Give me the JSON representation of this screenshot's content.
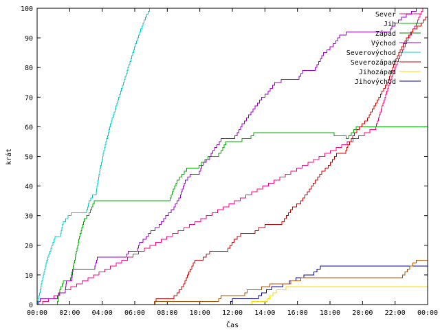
{
  "chart_data": {
    "type": "line",
    "title": "",
    "xlabel": "Čas",
    "ylabel": "krát",
    "xlim": [
      0,
      24
    ],
    "ylim": [
      0,
      100
    ],
    "x_ticks": [
      "00:00",
      "02:00",
      "04:00",
      "06:00",
      "08:00",
      "10:00",
      "12:00",
      "14:00",
      "16:00",
      "18:00",
      "20:00",
      "22:00",
      "00:00"
    ],
    "y_ticks": [
      "0",
      "10",
      "20",
      "30",
      "40",
      "50",
      "60",
      "70",
      "80",
      "90",
      "100"
    ],
    "legend_position": "top-right",
    "series": [
      {
        "name": "Sever",
        "color": "#ff0080",
        "points": [
          [
            0,
            0
          ],
          [
            20.8,
            60
          ],
          [
            21.6,
            74
          ],
          [
            22.2,
            83
          ],
          [
            22.8,
            90
          ],
          [
            23.3,
            95
          ],
          [
            23.7,
            100
          ],
          [
            24,
            100
          ]
        ]
      },
      {
        "name": "Jih",
        "color": "#00aa00",
        "points": [
          [
            0,
            0
          ],
          [
            1.2,
            0
          ],
          [
            1.4,
            5
          ],
          [
            1.6,
            8
          ],
          [
            2.0,
            8
          ],
          [
            2.3,
            15
          ],
          [
            2.6,
            23
          ],
          [
            2.9,
            29
          ],
          [
            3.2,
            31
          ],
          [
            3.5,
            35
          ],
          [
            8.1,
            35
          ],
          [
            8.3,
            38
          ],
          [
            8.6,
            42
          ],
          [
            8.9,
            44
          ],
          [
            9.2,
            46
          ],
          [
            9.8,
            46
          ],
          [
            10.1,
            48
          ],
          [
            10.5,
            50
          ],
          [
            11.0,
            50
          ],
          [
            11.3,
            52
          ],
          [
            11.6,
            55
          ],
          [
            12.3,
            55
          ],
          [
            12.6,
            56
          ],
          [
            13.0,
            56
          ],
          [
            13.3,
            58
          ],
          [
            17.5,
            58
          ],
          [
            19.0,
            56
          ],
          [
            19.3,
            58
          ],
          [
            19.6,
            60
          ],
          [
            24,
            60
          ]
        ]
      },
      {
        "name": "Západ",
        "color": "#008000",
        "points": []
      },
      {
        "name": "Východ",
        "color": "#9900cc",
        "points": [
          [
            0,
            0
          ],
          [
            0.2,
            2
          ],
          [
            1.2,
            2
          ],
          [
            1.3,
            4
          ],
          [
            1.7,
            4
          ],
          [
            1.8,
            8
          ],
          [
            2.1,
            8
          ],
          [
            2.2,
            12
          ],
          [
            3.5,
            12
          ],
          [
            3.7,
            16
          ],
          [
            5.4,
            16
          ],
          [
            5.6,
            18
          ],
          [
            6.1,
            18
          ],
          [
            6.3,
            21
          ],
          [
            6.7,
            23
          ],
          [
            7.0,
            25
          ],
          [
            7.5,
            27
          ],
          [
            7.9,
            30
          ],
          [
            8.4,
            33
          ],
          [
            8.8,
            37
          ],
          [
            9.1,
            42
          ],
          [
            9.4,
            44
          ],
          [
            9.9,
            44
          ],
          [
            10.2,
            48
          ],
          [
            10.6,
            50
          ],
          [
            10.9,
            53
          ],
          [
            11.2,
            55
          ],
          [
            11.3,
            56
          ],
          [
            12.0,
            56
          ],
          [
            12.3,
            58
          ],
          [
            12.6,
            61
          ],
          [
            13.0,
            64
          ],
          [
            13.4,
            67
          ],
          [
            13.8,
            70
          ],
          [
            14.2,
            72
          ],
          [
            14.6,
            75
          ],
          [
            15.0,
            76
          ],
          [
            16.0,
            76
          ],
          [
            16.3,
            79
          ],
          [
            17.0,
            79
          ],
          [
            17.3,
            82
          ],
          [
            17.6,
            85
          ],
          [
            18.2,
            88
          ],
          [
            18.6,
            91
          ],
          [
            19.0,
            92
          ],
          [
            21.6,
            92
          ],
          [
            21.8,
            94
          ],
          [
            22.0,
            95
          ],
          [
            22.4,
            97
          ],
          [
            23.0,
            99
          ],
          [
            23.3,
            100
          ],
          [
            24,
            100
          ]
        ]
      },
      {
        "name": "Severovýchod",
        "color": "#00cccc",
        "points": [
          [
            0,
            0
          ],
          [
            0.3,
            8
          ],
          [
            0.6,
            15
          ],
          [
            0.9,
            20
          ],
          [
            1.1,
            23
          ],
          [
            1.4,
            23
          ],
          [
            1.6,
            28
          ],
          [
            1.9,
            30
          ],
          [
            2.1,
            31
          ],
          [
            3.0,
            31
          ],
          [
            3.2,
            35
          ],
          [
            3.4,
            37
          ],
          [
            3.6,
            37
          ],
          [
            3.8,
            44
          ],
          [
            4.1,
            52
          ],
          [
            4.5,
            61
          ],
          [
            4.9,
            68
          ],
          [
            5.3,
            75
          ],
          [
            5.7,
            82
          ],
          [
            6.1,
            89
          ],
          [
            6.5,
            95
          ],
          [
            6.9,
            100
          ],
          [
            7.0,
            100
          ]
        ]
      },
      {
        "name": "Severozápad",
        "color": "#cc0000",
        "points": [
          [
            0,
            0
          ],
          [
            7.2,
            0
          ],
          [
            7.3,
            2
          ],
          [
            8.2,
            2
          ],
          [
            8.6,
            4
          ],
          [
            9.0,
            7
          ],
          [
            9.4,
            12
          ],
          [
            9.7,
            15
          ],
          [
            10.2,
            16
          ],
          [
            10.6,
            18
          ],
          [
            11.6,
            18
          ],
          [
            12.1,
            22
          ],
          [
            12.5,
            24
          ],
          [
            13.2,
            24
          ],
          [
            13.6,
            26
          ],
          [
            14.0,
            27
          ],
          [
            14.9,
            27
          ],
          [
            15.2,
            29
          ],
          [
            15.7,
            33
          ],
          [
            16.2,
            35
          ],
          [
            16.6,
            38
          ],
          [
            17.1,
            42
          ],
          [
            17.5,
            45
          ],
          [
            17.9,
            47
          ],
          [
            18.4,
            51
          ],
          [
            18.9,
            51
          ],
          [
            19.1,
            54
          ],
          [
            19.5,
            58
          ],
          [
            19.8,
            60
          ],
          [
            20.3,
            63
          ],
          [
            20.7,
            67
          ],
          [
            21.2,
            72
          ],
          [
            21.6,
            76
          ],
          [
            21.9,
            81
          ],
          [
            22.3,
            86
          ],
          [
            22.7,
            90
          ],
          [
            23.1,
            93
          ],
          [
            23.6,
            95
          ],
          [
            24,
            98
          ]
        ]
      },
      {
        "name": "Jihozápad",
        "color": "#ffd700",
        "points": [
          [
            0,
            0
          ],
          [
            13.0,
            0
          ],
          [
            13.2,
            1
          ],
          [
            14.0,
            1
          ],
          [
            14.3,
            3
          ],
          [
            14.7,
            5
          ],
          [
            15.3,
            6
          ],
          [
            24,
            6
          ]
        ]
      },
      {
        "name": "Jihovýchod",
        "color": "#0000aa",
        "points": [
          [
            0,
            0
          ],
          [
            11.8,
            0
          ],
          [
            12.0,
            2
          ],
          [
            13.4,
            2
          ],
          [
            13.8,
            4
          ],
          [
            14.4,
            6
          ],
          [
            15.1,
            7
          ],
          [
            15.9,
            9
          ],
          [
            16.4,
            10
          ],
          [
            17.0,
            11
          ],
          [
            17.4,
            13
          ],
          [
            24,
            13
          ]
        ]
      },
      {
        "name": "",
        "color": "#b05000",
        "points": [
          [
            0,
            0
          ],
          [
            7.0,
            0
          ],
          [
            7.2,
            1
          ],
          [
            11.0,
            1
          ],
          [
            11.3,
            3
          ],
          [
            12.6,
            3
          ],
          [
            12.9,
            5
          ],
          [
            13.8,
            6
          ],
          [
            14.3,
            7
          ],
          [
            15.3,
            7
          ],
          [
            15.6,
            8
          ],
          [
            16.2,
            9
          ],
          [
            22.3,
            9
          ],
          [
            22.6,
            11
          ],
          [
            22.9,
            13
          ],
          [
            23.3,
            15
          ],
          [
            24,
            15
          ]
        ]
      }
    ]
  }
}
